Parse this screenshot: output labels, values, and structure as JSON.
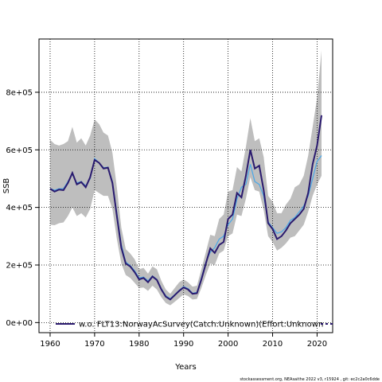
{
  "chart_data": {
    "type": "line",
    "title": "",
    "xlabel": "Years",
    "ylabel": "SSB",
    "xlim": [
      1957.5,
      2023.5
    ],
    "ylim": [
      -35000,
      985000
    ],
    "x_ticks": [
      1960,
      1970,
      1980,
      1990,
      2000,
      2010,
      2020
    ],
    "x_tick_labels": [
      "1960",
      "1970",
      "1980",
      "1990",
      "2000",
      "2010",
      "2020"
    ],
    "y_ticks": [
      0,
      200000,
      400000,
      600000,
      800000
    ],
    "y_tick_labels": [
      "0e+00",
      "2e+05",
      "4e+05",
      "6e+05",
      "8e+05"
    ],
    "grid": true,
    "legend": {
      "position": "bottom",
      "entries": [
        "w.o. FLT13:NorwayAcSurvey(Catch:Unknown)(Effort:Unknown"
      ]
    },
    "years": [
      1960,
      1961,
      1962,
      1963,
      1964,
      1965,
      1966,
      1967,
      1968,
      1969,
      1970,
      1971,
      1972,
      1973,
      1974,
      1975,
      1976,
      1977,
      1978,
      1979,
      1980,
      1981,
      1982,
      1983,
      1984,
      1985,
      1986,
      1987,
      1988,
      1989,
      1990,
      1991,
      1992,
      1993,
      1994,
      1995,
      1996,
      1997,
      1998,
      1999,
      2000,
      2001,
      2002,
      2003,
      2004,
      2005,
      2006,
      2007,
      2008,
      2009,
      2010,
      2011,
      2012,
      2013,
      2014,
      2015,
      2016,
      2017,
      2018,
      2019,
      2020,
      2021
    ],
    "series": [
      {
        "name": "w.o. FLT13:NorwayAcSurvey(Catch:Unknown)(Effort:Unknown",
        "color": "#2a1a6e",
        "values": [
          465000,
          455000,
          462000,
          460000,
          485000,
          520000,
          480000,
          488000,
          470000,
          505000,
          565000,
          555000,
          535000,
          538000,
          485000,
          370000,
          260000,
          205000,
          195000,
          175000,
          150000,
          155000,
          140000,
          160000,
          148000,
          115000,
          90000,
          80000,
          95000,
          110000,
          122000,
          115000,
          100000,
          102000,
          150000,
          205000,
          258000,
          242000,
          270000,
          280000,
          360000,
          375000,
          450000,
          435000,
          510000,
          600000,
          535000,
          545000,
          460000,
          345000,
          325000,
          290000,
          300000,
          320000,
          345000,
          360000,
          375000,
          395000,
          450000,
          550000,
          615000,
          720000
        ]
      },
      {
        "name": "",
        "color": "#4aa8e8",
        "values": [
          465000,
          460000,
          465000,
          465000,
          490000,
          515000,
          485000,
          490000,
          475000,
          500000,
          570000,
          555000,
          538000,
          540000,
          490000,
          380000,
          270000,
          210000,
          198000,
          180000,
          155000,
          158000,
          145000,
          162000,
          150000,
          118000,
          93000,
          83000,
          97000,
          112000,
          125000,
          118000,
          102000,
          105000,
          155000,
          210000,
          245000,
          260000,
          290000,
          300000,
          340000,
          360000,
          430000,
          470000,
          480000,
          550000,
          490000,
          480000,
          440000,
          350000,
          330000,
          310000,
          315000,
          330000,
          355000,
          365000,
          385000,
          405000,
          440000,
          500000,
          560000,
          580000
        ]
      }
    ],
    "confidence_band": {
      "color": "#bebebe",
      "upper": [
        635000,
        620000,
        615000,
        620000,
        630000,
        680000,
        625000,
        640000,
        615000,
        650000,
        705000,
        690000,
        660000,
        650000,
        590000,
        470000,
        330000,
        255000,
        240000,
        220000,
        185000,
        190000,
        170000,
        195000,
        185000,
        145000,
        115000,
        100000,
        120000,
        140000,
        150000,
        140000,
        125000,
        128000,
        185000,
        245000,
        305000,
        300000,
        360000,
        375000,
        455000,
        460000,
        540000,
        525000,
        610000,
        710000,
        630000,
        640000,
        575000,
        440000,
        420000,
        380000,
        380000,
        410000,
        430000,
        470000,
        480000,
        510000,
        580000,
        680000,
        780000,
        945000
      ],
      "lower": [
        340000,
        338000,
        345000,
        348000,
        370000,
        400000,
        370000,
        380000,
        365000,
        395000,
        460000,
        450000,
        440000,
        440000,
        395000,
        290000,
        205000,
        165000,
        155000,
        138000,
        120000,
        122000,
        110000,
        128000,
        115000,
        88000,
        68000,
        60000,
        72000,
        85000,
        98000,
        92000,
        80000,
        82000,
        120000,
        165000,
        205000,
        200000,
        240000,
        250000,
        300000,
        310000,
        375000,
        370000,
        430000,
        505000,
        460000,
        455000,
        390000,
        300000,
        280000,
        250000,
        260000,
        275000,
        295000,
        300000,
        320000,
        340000,
        385000,
        440000,
        480000,
        510000
      ]
    }
  },
  "footer": "stockassessment.org, NEAsaithe 2022 v3, r15924 , git: ec2c2a0c6dde"
}
